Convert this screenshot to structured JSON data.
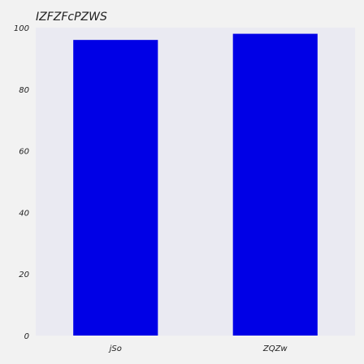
{
  "chart_data": {
    "type": "bar",
    "title": "IZFZFcPZWS",
    "xlabel": "",
    "ylabel": "",
    "categories": [
      "jSo",
      "ZQZw"
    ],
    "values": [
      96,
      98
    ],
    "ylim": [
      0,
      100
    ],
    "yticks": [
      "0",
      "20",
      "40",
      "60",
      "80",
      "100"
    ],
    "grid": false,
    "legend": "none",
    "colors": {
      "bar": "#0000e6",
      "plot_background": "#eaeaf2",
      "page_background": "#f2f2f2"
    }
  }
}
